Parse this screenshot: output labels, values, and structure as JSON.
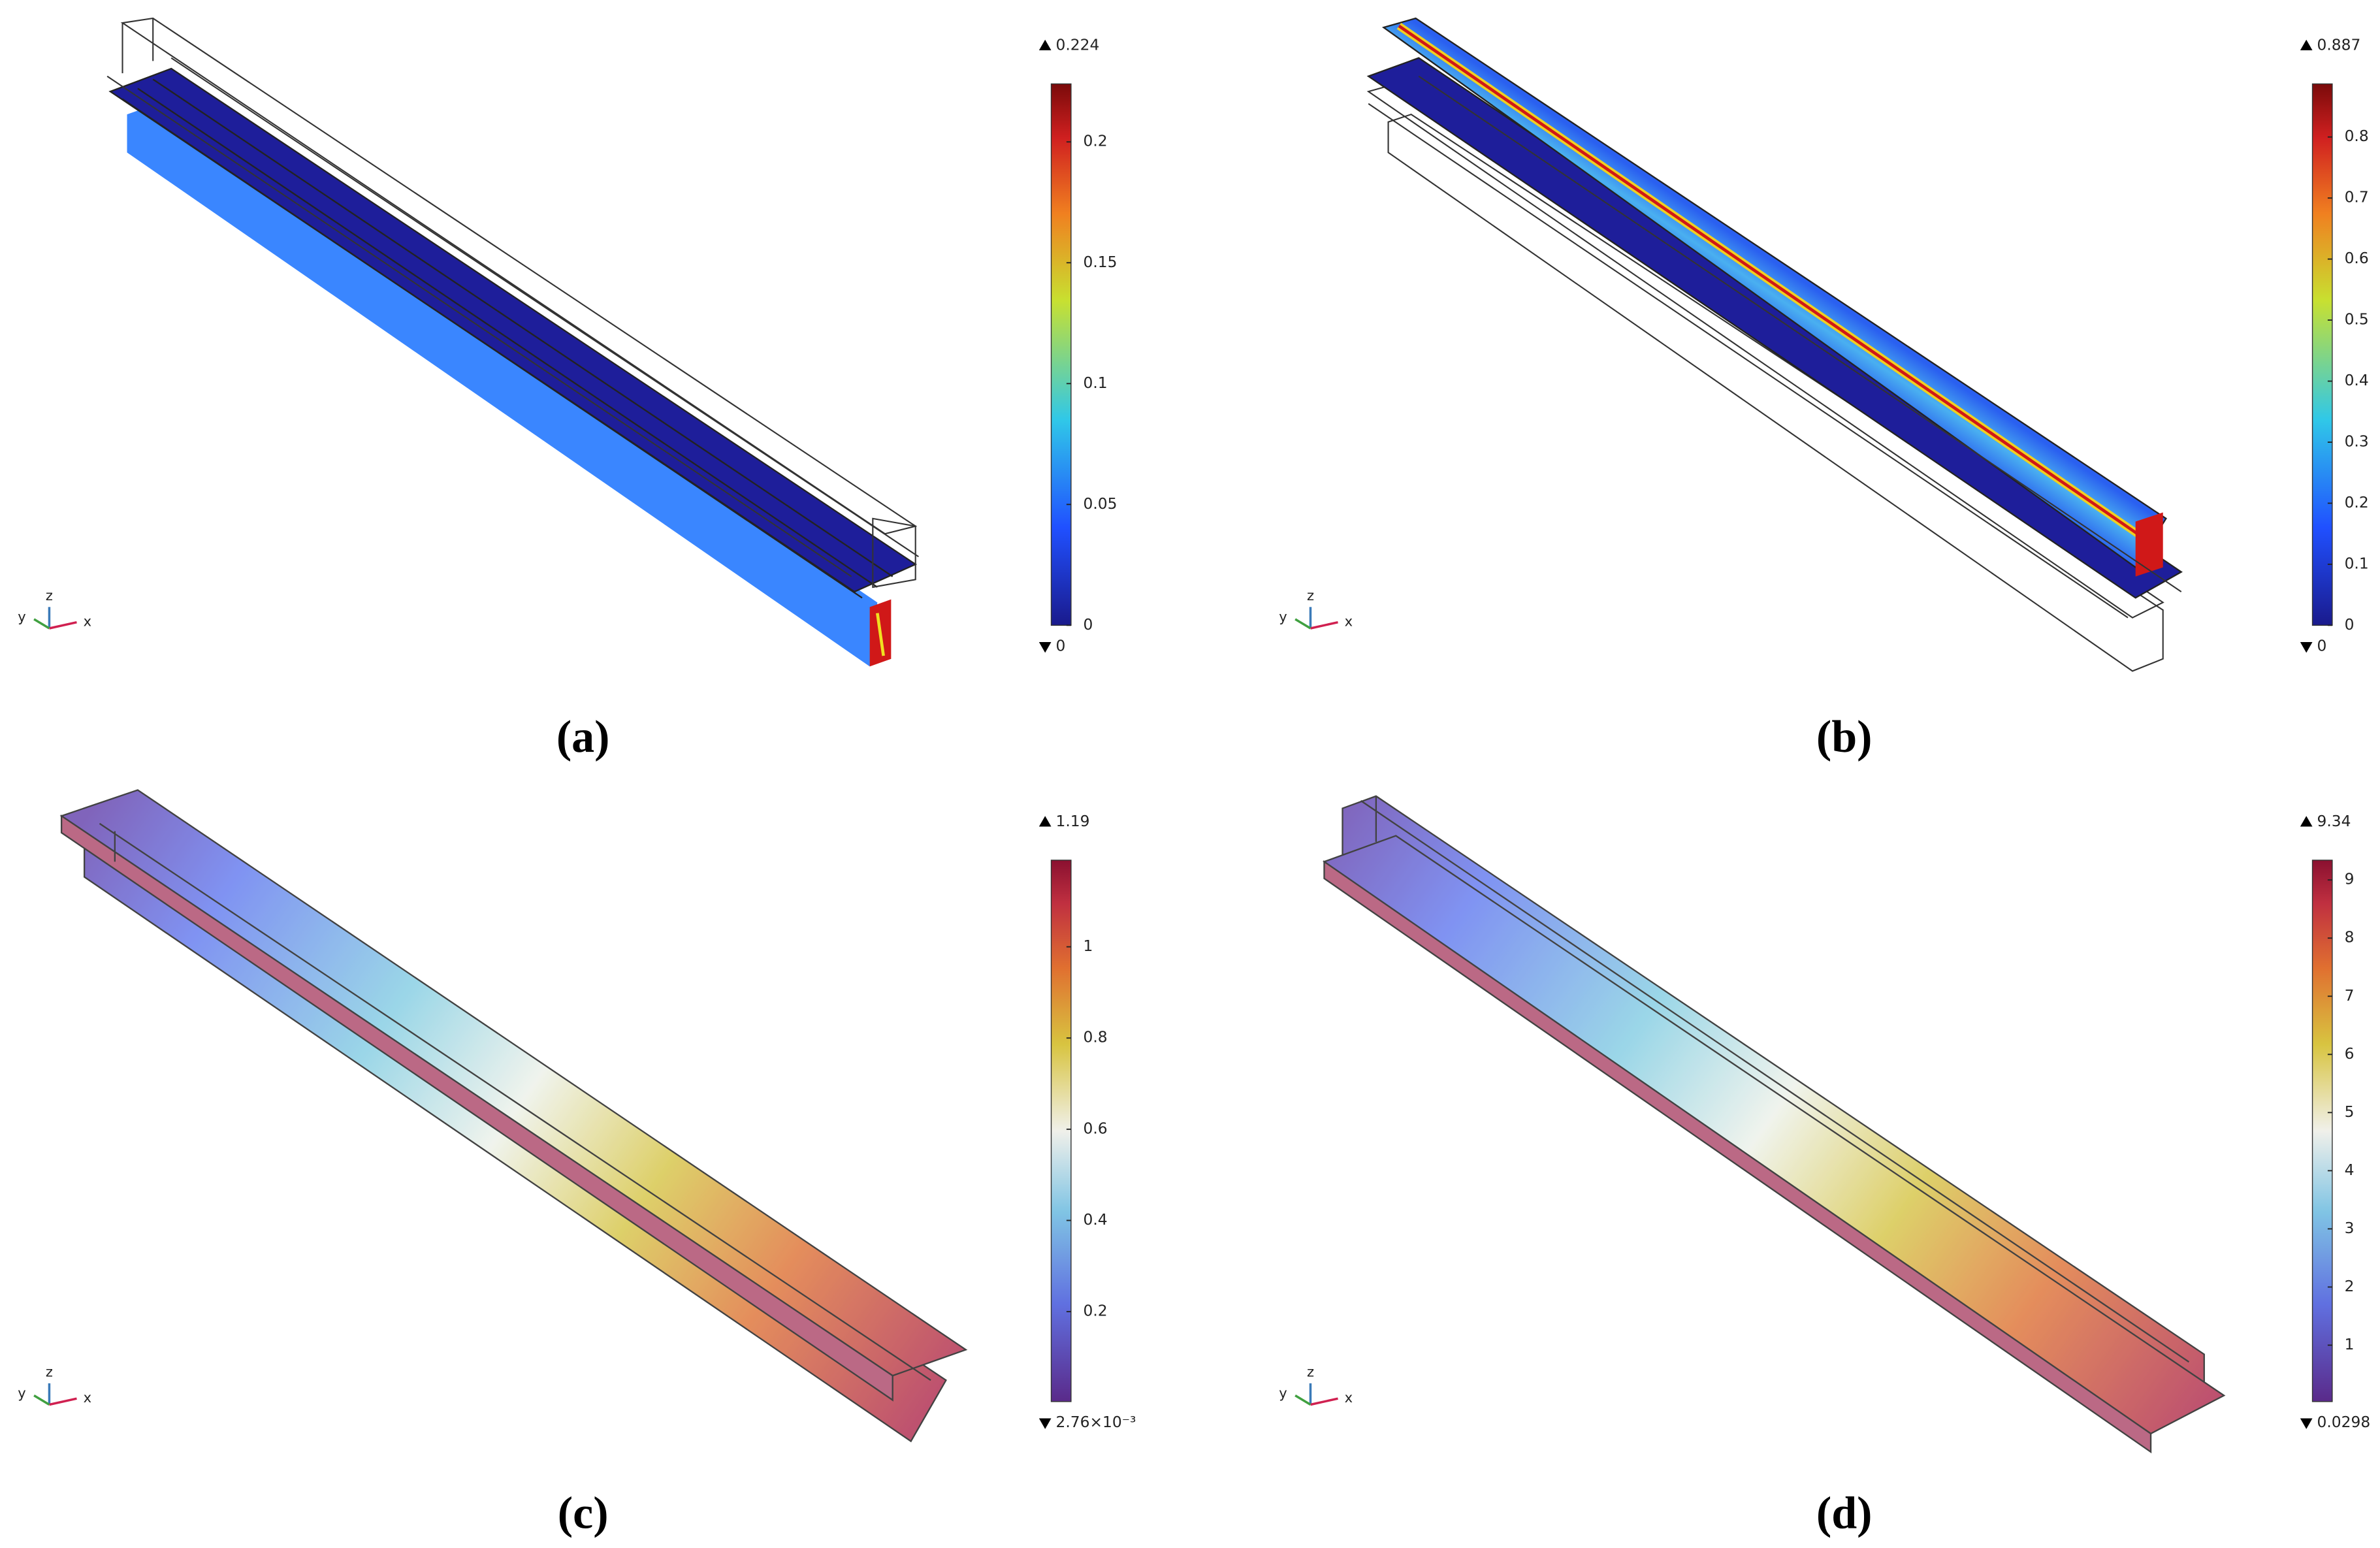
{
  "panels": [
    {
      "label": "(a)",
      "triad": {
        "x": "x",
        "y": "y",
        "z": "z"
      },
      "colorbar": {
        "colormap": "rainbow",
        "max": 0.224,
        "min": 0,
        "ticks": [
          0,
          0.05,
          0.1,
          0.15,
          0.2
        ]
      }
    },
    {
      "label": "(b)",
      "triad": {
        "x": "x",
        "y": "y",
        "z": "z"
      },
      "colorbar": {
        "colormap": "rainbow",
        "max": 0.887,
        "min": 0,
        "ticks": [
          0,
          0.1,
          0.2,
          0.3,
          0.4,
          0.5,
          0.6,
          0.7,
          0.8
        ]
      }
    },
    {
      "label": "(c)",
      "triad": {
        "x": "x",
        "y": "y",
        "z": "z"
      },
      "colorbar": {
        "colormap": "light",
        "max": 1.19,
        "min": {
          "value": 0.00276,
          "label": "2.76×10⁻³"
        },
        "ticks": [
          0.2,
          0.4,
          0.6,
          0.8,
          1
        ]
      }
    },
    {
      "label": "(d)",
      "triad": {
        "x": "x",
        "y": "y",
        "z": "z"
      },
      "colorbar": {
        "colormap": "light",
        "max": 9.34,
        "min": 0.0298,
        "ticks": [
          1,
          2,
          3,
          4,
          5,
          6,
          7,
          8,
          9
        ]
      }
    }
  ]
}
